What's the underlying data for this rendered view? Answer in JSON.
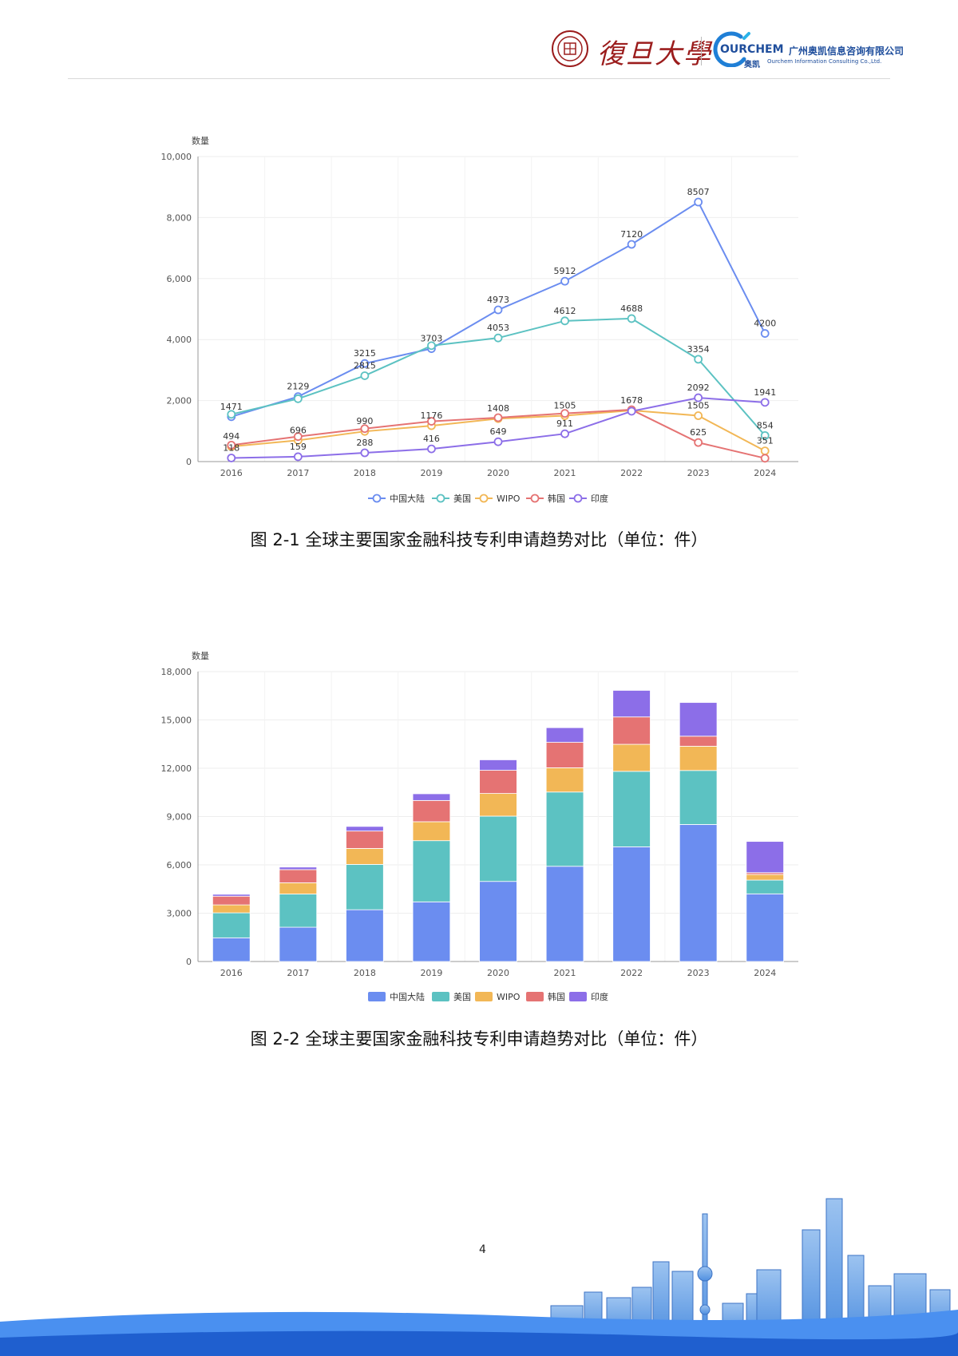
{
  "header": {
    "university_name": "復旦大學",
    "company_short": "OURCHEM",
    "company_cn": "广州奥凯信息咨询有限公司",
    "company_sub_cn": "奥凯",
    "company_en": "Ourchem Information Consulting Co.,Ltd."
  },
  "chart_data": [
    {
      "type": "line",
      "ylabel": "数量",
      "ylim": [
        0,
        10000
      ],
      "yticks": [
        "0",
        "2,000",
        "4,000",
        "6,000",
        "8,000",
        "10,000"
      ],
      "categories": [
        "2016",
        "2017",
        "2018",
        "2019",
        "2020",
        "2021",
        "2022",
        "2023",
        "2024"
      ],
      "grid": true,
      "legend_position": "bottom",
      "series": [
        {
          "name": "中国大陆",
          "color": "#6b8df0",
          "values": [
            1471,
            2129,
            3215,
            3703,
            4973,
            5912,
            7120,
            8507,
            4200
          ]
        },
        {
          "name": "美国",
          "color": "#5cc2c2",
          "values": [
            1550,
            2060,
            2815,
            3800,
            4053,
            4612,
            4688,
            3354,
            854
          ]
        },
        {
          "name": "WIPO",
          "color": "#f2b756",
          "values": [
            494,
            696,
            990,
            1176,
            1408,
            1505,
            1678,
            1505,
            351
          ]
        },
        {
          "name": "韩国",
          "color": "#e57373",
          "values": [
            540,
            820,
            1080,
            1320,
            1440,
            1580,
            1700,
            625,
            110
          ]
        },
        {
          "name": "印度",
          "color": "#8c6ee8",
          "values": [
            118,
            159,
            288,
            416,
            649,
            911,
            1650,
            2092,
            1941
          ]
        }
      ],
      "data_labels": [
        {
          "x": "2016",
          "y": 1471,
          "text": "1471"
        },
        {
          "x": "2017",
          "y": 2129,
          "text": "2129"
        },
        {
          "x": "2018",
          "y": 3215,
          "text": "3215"
        },
        {
          "x": "2019",
          "y": 3703,
          "text": "3703"
        },
        {
          "x": "2020",
          "y": 4973,
          "text": "4973"
        },
        {
          "x": "2021",
          "y": 5912,
          "text": "5912"
        },
        {
          "x": "2022",
          "y": 7120,
          "text": "7120"
        },
        {
          "x": "2023",
          "y": 8507,
          "text": "8507"
        },
        {
          "x": "2024",
          "y": 4200,
          "text": "4200"
        },
        {
          "x": "2018",
          "y": 2815,
          "text": "2815"
        },
        {
          "x": "2020",
          "y": 4053,
          "text": "4053"
        },
        {
          "x": "2021",
          "y": 4612,
          "text": "4612"
        },
        {
          "x": "2022",
          "y": 4688,
          "text": "4688"
        },
        {
          "x": "2023",
          "y": 3354,
          "text": "3354"
        },
        {
          "x": "2024",
          "y": 854,
          "text": "854"
        },
        {
          "x": "2016",
          "y": 494,
          "text": "494"
        },
        {
          "x": "2017",
          "y": 696,
          "text": "696"
        },
        {
          "x": "2018",
          "y": 990,
          "text": "990"
        },
        {
          "x": "2019",
          "y": 1176,
          "text": "1176"
        },
        {
          "x": "2020",
          "y": 1408,
          "text": "1408"
        },
        {
          "x": "2021",
          "y": 1505,
          "text": "1505"
        },
        {
          "x": "2022",
          "y": 1678,
          "text": "1678"
        },
        {
          "x": "2023",
          "y": 1505,
          "text": "1505"
        },
        {
          "x": "2024",
          "y": 351,
          "text": "351"
        },
        {
          "x": "2023",
          "y": 625,
          "text": "625"
        },
        {
          "x": "2016",
          "y": 118,
          "text": "118"
        },
        {
          "x": "2017",
          "y": 159,
          "text": "159"
        },
        {
          "x": "2018",
          "y": 288,
          "text": "288"
        },
        {
          "x": "2019",
          "y": 416,
          "text": "416"
        },
        {
          "x": "2020",
          "y": 649,
          "text": "649"
        },
        {
          "x": "2021",
          "y": 911,
          "text": "911"
        },
        {
          "x": "2023",
          "y": 2092,
          "text": "2092"
        },
        {
          "x": "2024",
          "y": 1941,
          "text": "1941"
        }
      ]
    },
    {
      "type": "bar",
      "stacked": true,
      "ylabel": "数量",
      "ylim": [
        0,
        18000
      ],
      "yticks": [
        "0",
        "3,000",
        "6,000",
        "9,000",
        "12,000",
        "15,000",
        "18,000"
      ],
      "categories": [
        "2016",
        "2017",
        "2018",
        "2019",
        "2020",
        "2021",
        "2022",
        "2023",
        "2024"
      ],
      "grid": true,
      "legend_position": "bottom",
      "series": [
        {
          "name": "中国大陆",
          "color": "#6b8df0",
          "values": [
            1471,
            2129,
            3215,
            3703,
            4973,
            5912,
            7120,
            8507,
            4200
          ]
        },
        {
          "name": "美国",
          "color": "#5cc2c2",
          "values": [
            1550,
            2060,
            2815,
            3800,
            4053,
            4612,
            4688,
            3354,
            854
          ]
        },
        {
          "name": "WIPO",
          "color": "#f2b756",
          "values": [
            494,
            696,
            990,
            1176,
            1408,
            1505,
            1678,
            1505,
            351
          ]
        },
        {
          "name": "韩国",
          "color": "#e57373",
          "values": [
            540,
            820,
            1080,
            1320,
            1440,
            1580,
            1700,
            625,
            110
          ]
        },
        {
          "name": "印度",
          "color": "#8c6ee8",
          "values": [
            118,
            159,
            288,
            416,
            649,
            911,
            1650,
            2092,
            1941
          ]
        }
      ]
    }
  ],
  "captions": {
    "figure1": "图 2-1  全球主要国家金融科技专利申请趋势对比（单位：件）",
    "figure2": "图 2-2  全球主要国家金融科技专利申请趋势对比（单位：件）"
  },
  "page_number": "4"
}
